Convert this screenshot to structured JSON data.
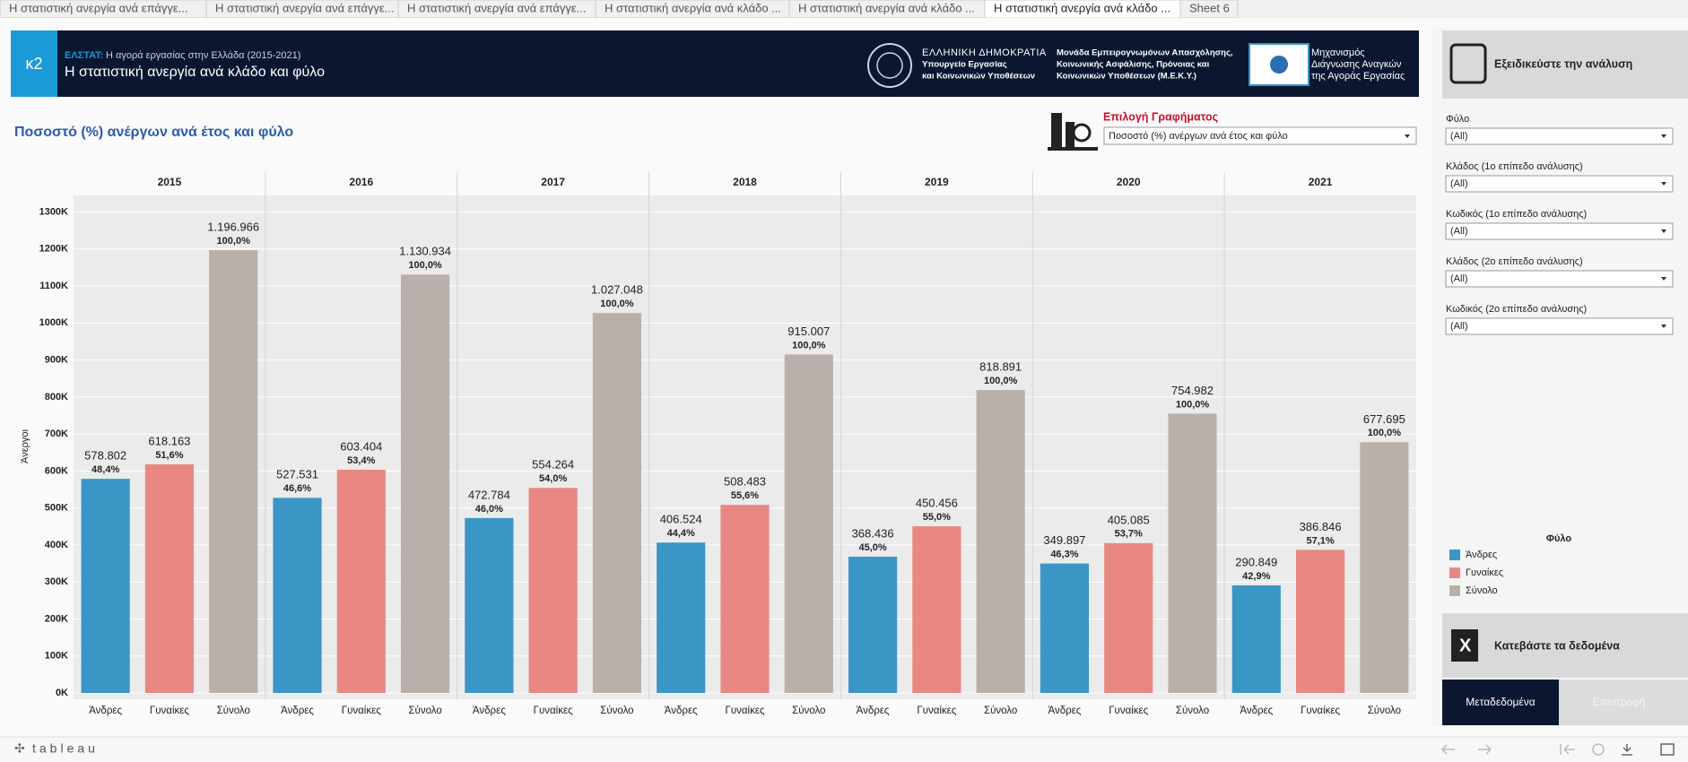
{
  "tabs": [
    "Η στατιστική ανεργία ανά επάγγε...",
    "Η στατιστική ανεργία ανά επάγγε...",
    "Η στατιστική ανεργία ανά επάγγε...",
    "Η στατιστική ανεργία ανά κλάδο ...",
    "Η στατιστική ανεργία ανά κλάδο ...",
    "Η στατιστική ανεργία ανά κλάδο ...",
    "Sheet 6"
  ],
  "header": {
    "logo": "κ2",
    "source": "ΕΛΣΤΑΤ:",
    "subtitle": "Η αγορά εργασίας στην Ελλάδα (2015-2021)",
    "title": "Η στατιστική ανεργία ανά κλάδο και φύλο",
    "ministry": [
      "ΕΛΛΗΝΙΚΗ ΔΗΜΟΚΡΑΤΙΑ",
      "Υπουργείο Εργασίας",
      "και Κοινωνικών Υποθέσεων"
    ],
    "unit": [
      "Μονάδα Εμπειρογνωμόνων Απασχόλησης,",
      "Κοινωνικής Ασφάλισης, Πρόνοιας και",
      "Κοινωνικών Υποθέσεων (Μ.Ε.Κ.Υ.)"
    ],
    "mechanism": [
      "Μηχανισμός",
      "Διάγνωσης Αναγκών",
      "της Αγοράς Εργασίας"
    ]
  },
  "selector": {
    "label": "Επιλογή Γραφήματος",
    "value": "Ποσοστό (%) ανέργων ανά έτος και φύλο"
  },
  "chart_data": {
    "type": "bar",
    "title": "Ποσοστό (%) ανέργων ανά έτος και φύλο",
    "ylabel": "Άνεργοι",
    "categories": [
      "2015",
      "2016",
      "2017",
      "2018",
      "2019",
      "2020",
      "2021"
    ],
    "series": [
      {
        "name": "Άνδρες",
        "color": "#3a96c5",
        "values": [
          578802,
          527531,
          472784,
          406524,
          368436,
          349897,
          290849
        ],
        "value_labels": [
          "578.802",
          "527.531",
          "472.784",
          "406.524",
          "368.436",
          "349.897",
          "290.849"
        ],
        "share_labels": [
          "48,4%",
          "46,6%",
          "46,0%",
          "44,4%",
          "45,0%",
          "46,3%",
          "42,9%"
        ]
      },
      {
        "name": "Γυναίκες",
        "color": "#e98882",
        "values": [
          618163,
          603404,
          554264,
          508483,
          450456,
          405085,
          386846
        ],
        "value_labels": [
          "618.163",
          "603.404",
          "554.264",
          "508.483",
          "450.456",
          "405.085",
          "386.846"
        ],
        "share_labels": [
          "51,6%",
          "53,4%",
          "54,0%",
          "55,6%",
          "55,0%",
          "53,7%",
          "57,1%"
        ]
      },
      {
        "name": "Σύνολο",
        "color": "#bab0ab",
        "values": [
          1196966,
          1130934,
          1027048,
          915007,
          818891,
          754982,
          677695
        ],
        "value_labels": [
          "1.196.966",
          "1.130.934",
          "1.027.048",
          "915.007",
          "818.891",
          "754.982",
          "677.695"
        ],
        "share_labels": [
          "100,0%",
          "100,0%",
          "100,0%",
          "100,0%",
          "100,0%",
          "100,0%",
          "100,0%"
        ]
      }
    ],
    "ylim": [
      0,
      1340000
    ],
    "yticks": [
      {
        "value": 0,
        "label": "0K"
      },
      {
        "value": 100000,
        "label": "100K"
      },
      {
        "value": 200000,
        "label": "200K"
      },
      {
        "value": 300000,
        "label": "300K"
      },
      {
        "value": 400000,
        "label": "400K"
      },
      {
        "value": 500000,
        "label": "500K"
      },
      {
        "value": 600000,
        "label": "600K"
      },
      {
        "value": 700000,
        "label": "700K"
      },
      {
        "value": 800000,
        "label": "800K"
      },
      {
        "value": 900000,
        "label": "900K"
      },
      {
        "value": 1000000,
        "label": "1000K"
      },
      {
        "value": 1100000,
        "label": "1100K"
      },
      {
        "value": 1200000,
        "label": "1200K"
      },
      {
        "value": 1300000,
        "label": "1300K"
      }
    ],
    "grid": true,
    "legend_title": "Φύλο"
  },
  "sidebar": {
    "refine": "Εξειδικεύστε την ανάλυση",
    "filters": [
      {
        "label": "Φύλο",
        "value": "(All)"
      },
      {
        "label": "Κλάδος (1ο επίπεδο ανάλυσης)",
        "value": "(All)"
      },
      {
        "label": "Κωδικός (1ο επίπεδο ανάλυσης)",
        "value": "(All)"
      },
      {
        "label": "Κλάδος (2ο επίπεδο ανάλυσης)",
        "value": "(All)"
      },
      {
        "label": "Κωδικός (2ο επίπεδο ανάλυσης)",
        "value": "(All)"
      }
    ],
    "download": "Κατεβάστε τα δεδομένα",
    "metadata": "Μεταδεδομένα",
    "back": "Επιστροφή"
  },
  "footer": {
    "brand": "tableau"
  }
}
